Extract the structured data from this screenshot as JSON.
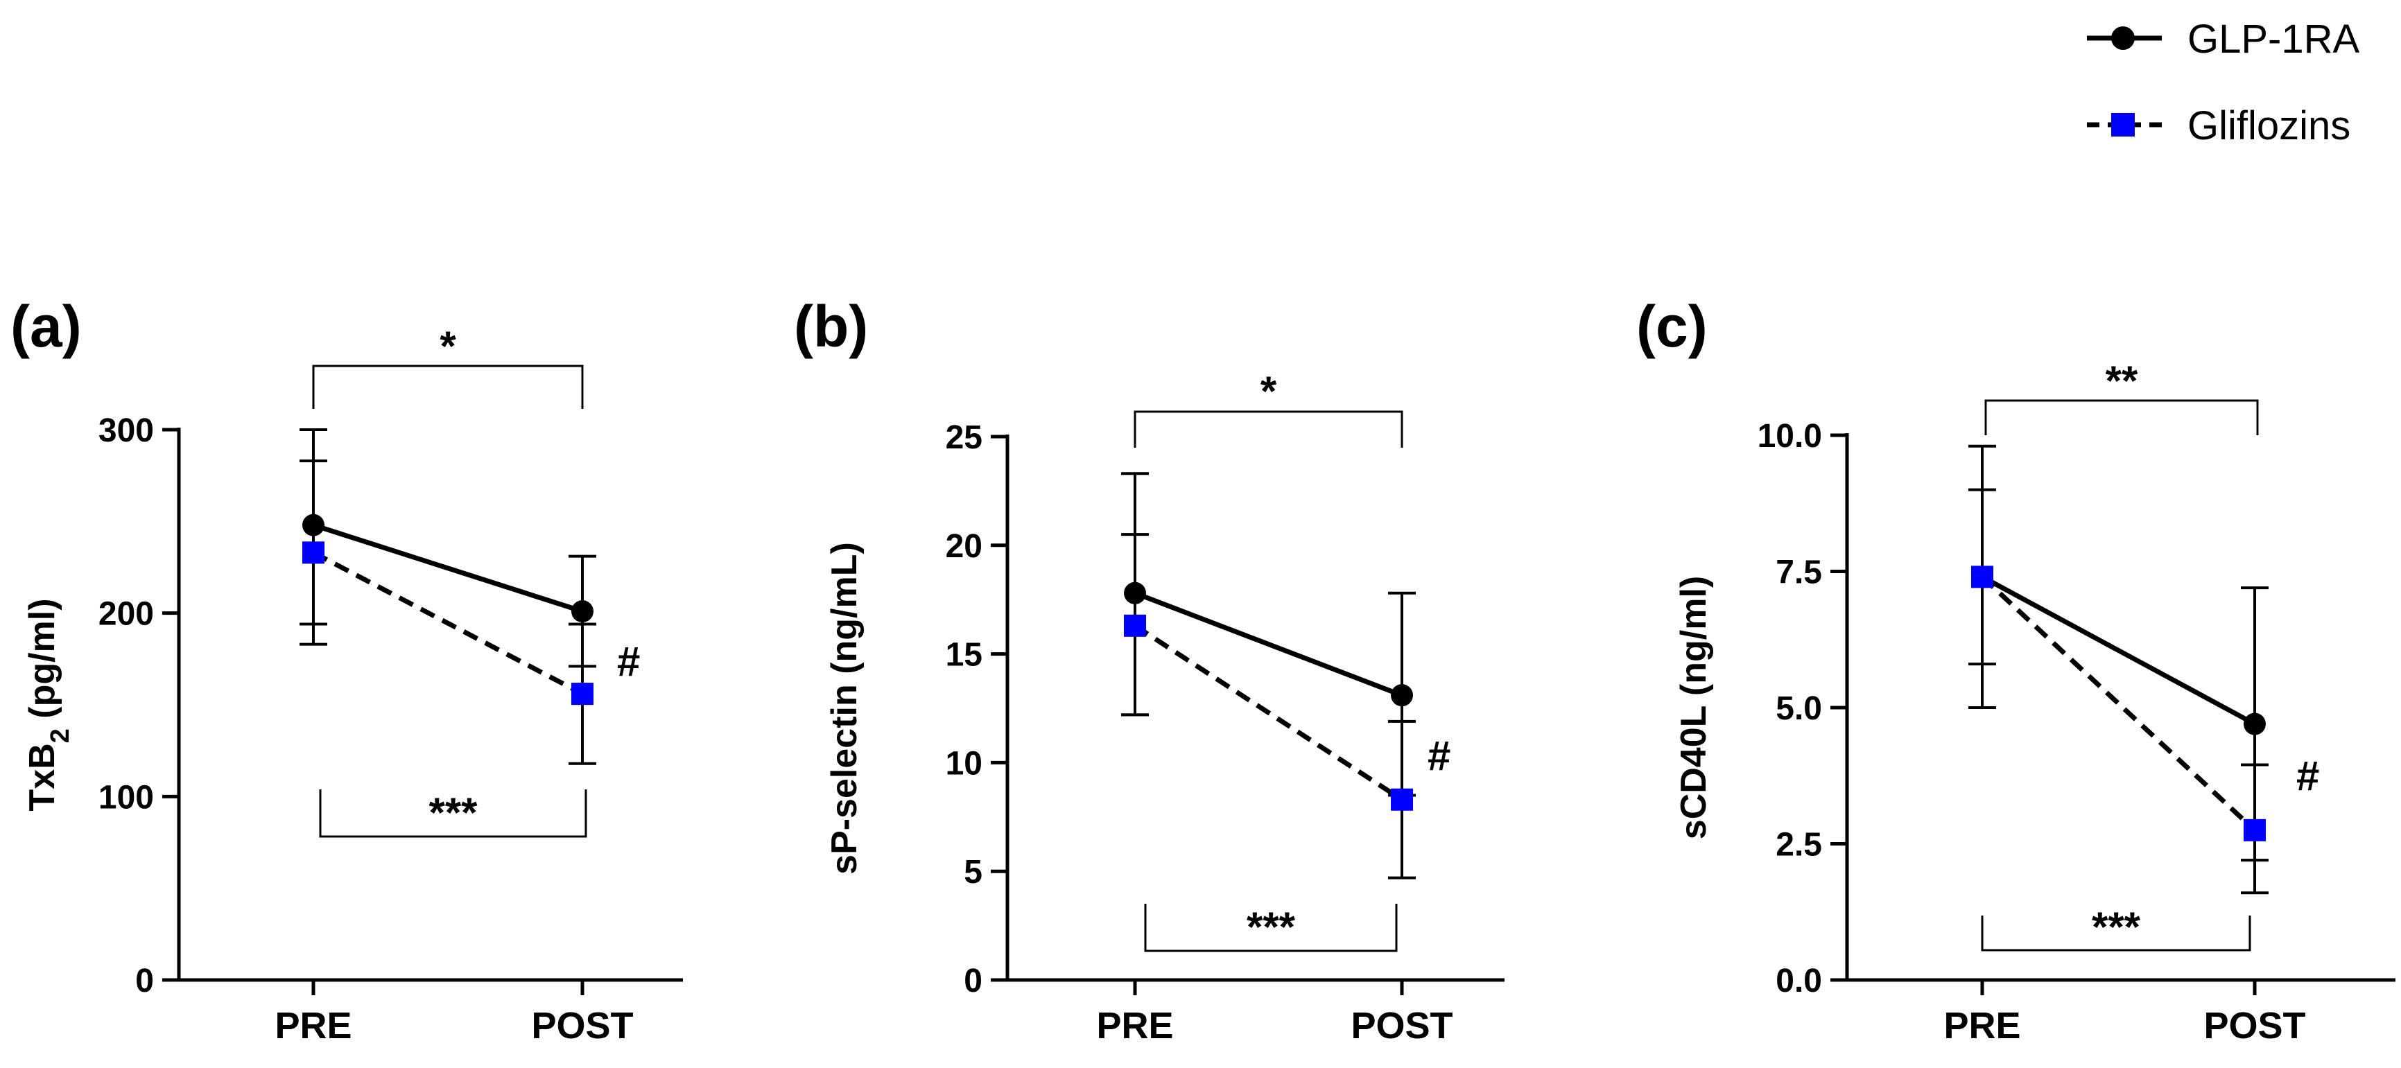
{
  "chart_data": [
    {
      "type": "line",
      "panel": "(a)",
      "categories": [
        "PRE",
        "POST"
      ],
      "ylabel_main": "TxB",
      "ylabel_sub": "2",
      "ylabel_unit": " (pg/ml)",
      "ylim": [
        0,
        300
      ],
      "yticks": [
        0,
        100,
        200,
        300
      ],
      "ytick_labels": [
        "0",
        "100",
        "200",
        "300"
      ],
      "series": [
        {
          "name": "GLP-1RA",
          "values": [
            248,
            201
          ],
          "err_low": [
            194,
            171
          ],
          "err_high": [
            300,
            231
          ]
        },
        {
          "name": "Gliflozins",
          "values": [
            233,
            156
          ],
          "err_low": [
            183,
            118
          ],
          "err_high": [
            283,
            194
          ]
        }
      ],
      "top_bracket": "*",
      "bottom_bracket": "***",
      "hash": "#"
    },
    {
      "type": "line",
      "panel": "(b)",
      "categories": [
        "PRE",
        "POST"
      ],
      "ylabel_main": "sP-selectin (ng/mL)",
      "ylabel_sub": "",
      "ylabel_unit": "",
      "ylim": [
        0,
        25
      ],
      "yticks": [
        0,
        5,
        10,
        15,
        20,
        25
      ],
      "ytick_labels": [
        "0",
        "5",
        "10",
        "15",
        "20",
        "25"
      ],
      "series": [
        {
          "name": "GLP-1RA",
          "values": [
            17.8,
            13.1
          ],
          "err_low": [
            12.2,
            8.5
          ],
          "err_high": [
            23.3,
            17.8
          ]
        },
        {
          "name": "Gliflozins",
          "values": [
            16.3,
            8.3
          ],
          "err_low": [
            12.2,
            4.7
          ],
          "err_high": [
            20.5,
            11.9
          ]
        }
      ],
      "top_bracket": "*",
      "bottom_bracket": "***",
      "hash": "#"
    },
    {
      "type": "line",
      "panel": "(c)",
      "categories": [
        "PRE",
        "POST"
      ],
      "ylabel_main": "sCD40L (ng/ml)",
      "ylabel_sub": "",
      "ylabel_unit": "",
      "ylim": [
        0,
        10
      ],
      "yticks": [
        0,
        2.5,
        5,
        7.5,
        10
      ],
      "ytick_labels": [
        "0.0",
        "2.5",
        "5.0",
        "7.5",
        "10.0"
      ],
      "series": [
        {
          "name": "GLP-1RA",
          "values": [
            7.4,
            4.7
          ],
          "err_low": [
            5.0,
            2.2
          ],
          "err_high": [
            9.8,
            7.2
          ]
        },
        {
          "name": "Gliflozins",
          "values": [
            7.4,
            2.75
          ],
          "err_low": [
            5.8,
            1.6
          ],
          "err_high": [
            9.0,
            3.95
          ]
        }
      ],
      "top_bracket": "**",
      "bottom_bracket": "***",
      "hash": "#"
    }
  ],
  "legend": [
    {
      "name": "GLP-1RA",
      "color": "#000000",
      "marker": "circle",
      "dash": "solid"
    },
    {
      "name": "Gliflozins",
      "color": "#0000ff",
      "marker": "square",
      "dash": "dashed"
    }
  ]
}
